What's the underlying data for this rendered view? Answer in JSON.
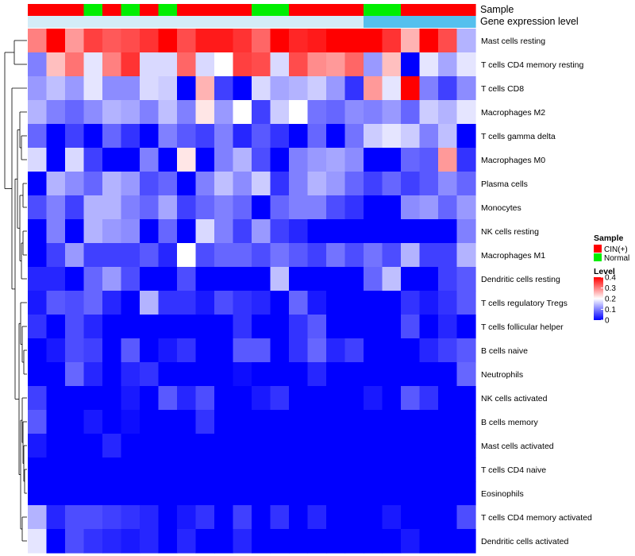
{
  "chart_data": {
    "type": "heatmap",
    "title": "",
    "value_range": [
      0,
      0.4
    ],
    "row_labels": [
      "Mast cells resting",
      "T cells CD4 memory resting",
      "T cells CD8",
      "Macrophages M2",
      "T cells gamma delta",
      "Macrophages M0",
      "Plasma cells",
      "Monocytes",
      "NK cells resting",
      "Macrophages M1",
      "Dendritic cells resting",
      "T cells regulatory  Tregs",
      "T cells follicular helper",
      "B cells naive",
      "Neutrophils",
      "NK cells activated",
      "B cells memory",
      "Mast cells activated",
      "T cells CD4 naive",
      "Eosinophils",
      "T cells CD4 memory activated",
      "Dendritic cells activated"
    ],
    "column_annotations": {
      "sample": [
        "CIN(+)",
        "CIN(+)",
        "CIN(+)",
        "Normal",
        "CIN(+)",
        "Normal",
        "CIN(+)",
        "Normal",
        "CIN(+)",
        "CIN(+)",
        "CIN(+)",
        "CIN(+)",
        "Normal",
        "Normal",
        "CIN(+)",
        "CIN(+)",
        "CIN(+)",
        "CIN(+)",
        "Normal",
        "Normal",
        "CIN(+)",
        "CIN(+)",
        "CIN(+)",
        "CIN(+)"
      ],
      "gene_expression_level": [
        "low",
        "low",
        "low",
        "low",
        "low",
        "low",
        "low",
        "low",
        "low",
        "low",
        "low",
        "low",
        "low",
        "low",
        "low",
        "low",
        "low",
        "low",
        "high",
        "high",
        "high",
        "high",
        "high",
        "high"
      ]
    },
    "annotation_colors": {
      "CIN(+)": "#ff0000",
      "Normal": "#00ee00",
      "low": "#d4ecf7",
      "high": "#55c0ee"
    },
    "values": [
      [
        0.3,
        0.4,
        0.28,
        0.35,
        0.33,
        0.34,
        0.36,
        0.4,
        0.34,
        0.38,
        0.38,
        0.36,
        0.32,
        0.4,
        0.37,
        0.38,
        0.4,
        0.4,
        0.4,
        0.36,
        0.26,
        0.4,
        0.34,
        0.14
      ],
      [
        0.1,
        0.25,
        0.31,
        0.18,
        0.3,
        0.36,
        0.17,
        0.17,
        0.32,
        0.17,
        0.2,
        0.35,
        0.34,
        0.17,
        0.34,
        0.29,
        0.28,
        0.32,
        0.12,
        0.25,
        0.0,
        0.18,
        0.13,
        0.18
      ],
      [
        0.12,
        0.15,
        0.12,
        0.18,
        0.11,
        0.11,
        0.17,
        0.16,
        0.0,
        0.26,
        0.05,
        0.0,
        0.17,
        0.13,
        0.14,
        0.16,
        0.12,
        0.04,
        0.28,
        0.18,
        0.4,
        0.1,
        0.05,
        0.11
      ],
      [
        0.14,
        0.1,
        0.08,
        0.11,
        0.14,
        0.13,
        0.1,
        0.15,
        0.1,
        0.22,
        0.12,
        0.2,
        0.05,
        0.16,
        0.2,
        0.09,
        0.08,
        0.11,
        0.1,
        0.12,
        0.08,
        0.16,
        0.14,
        0.18
      ],
      [
        0.08,
        0.0,
        0.05,
        0.0,
        0.08,
        0.04,
        0.0,
        0.1,
        0.07,
        0.05,
        0.1,
        0.03,
        0.07,
        0.04,
        0.0,
        0.08,
        0.0,
        0.09,
        0.16,
        0.18,
        0.16,
        0.1,
        0.15,
        0.0
      ],
      [
        0.17,
        0.0,
        0.17,
        0.05,
        0.0,
        0.0,
        0.1,
        0.0,
        0.22,
        0.0,
        0.1,
        0.14,
        0.06,
        0.0,
        0.1,
        0.12,
        0.13,
        0.11,
        0.0,
        0.0,
        0.08,
        0.07,
        0.28,
        0.04
      ],
      [
        0.0,
        0.14,
        0.11,
        0.08,
        0.14,
        0.12,
        0.06,
        0.08,
        0.0,
        0.1,
        0.15,
        0.11,
        0.16,
        0.04,
        0.1,
        0.14,
        0.12,
        0.08,
        0.05,
        0.08,
        0.05,
        0.07,
        0.11,
        0.08
      ],
      [
        0.06,
        0.1,
        0.05,
        0.14,
        0.14,
        0.1,
        0.08,
        0.13,
        0.05,
        0.08,
        0.1,
        0.08,
        0.0,
        0.08,
        0.1,
        0.1,
        0.06,
        0.04,
        0.0,
        0.0,
        0.11,
        0.12,
        0.08,
        0.12
      ],
      [
        0.0,
        0.1,
        0.0,
        0.14,
        0.12,
        0.11,
        0.0,
        0.08,
        0.0,
        0.17,
        0.1,
        0.05,
        0.12,
        0.05,
        0.03,
        0.0,
        0.0,
        0.0,
        0.0,
        0.0,
        0.0,
        0.0,
        0.0,
        0.1
      ],
      [
        0.0,
        0.05,
        0.12,
        0.05,
        0.05,
        0.05,
        0.07,
        0.03,
        0.2,
        0.06,
        0.08,
        0.08,
        0.06,
        0.09,
        0.07,
        0.05,
        0.09,
        0.06,
        0.09,
        0.06,
        0.14,
        0.05,
        0.05,
        0.14
      ],
      [
        0.03,
        0.03,
        0.0,
        0.08,
        0.12,
        0.06,
        0.0,
        0.0,
        0.06,
        0.0,
        0.0,
        0.0,
        0.0,
        0.15,
        0.0,
        0.0,
        0.0,
        0.0,
        0.08,
        0.15,
        0.0,
        0.0,
        0.05,
        0.07
      ],
      [
        0.02,
        0.07,
        0.06,
        0.08,
        0.03,
        0.0,
        0.14,
        0.04,
        0.04,
        0.02,
        0.06,
        0.04,
        0.03,
        0.0,
        0.08,
        0.02,
        0.0,
        0.0,
        0.0,
        0.0,
        0.04,
        0.02,
        0.04,
        0.07
      ],
      [
        0.04,
        0.0,
        0.06,
        0.03,
        0.0,
        0.0,
        0.0,
        0.0,
        0.0,
        0.0,
        0.0,
        0.04,
        0.0,
        0.0,
        0.04,
        0.07,
        0.0,
        0.0,
        0.0,
        0.0,
        0.06,
        0.0,
        0.03,
        0.0
      ],
      [
        0.0,
        0.02,
        0.06,
        0.05,
        0.0,
        0.07,
        0.0,
        0.02,
        0.04,
        0.0,
        0.0,
        0.07,
        0.07,
        0.0,
        0.04,
        0.08,
        0.03,
        0.05,
        0.0,
        0.0,
        0.0,
        0.03,
        0.05,
        0.07
      ],
      [
        0.0,
        0.0,
        0.08,
        0.03,
        0.0,
        0.03,
        0.04,
        0.0,
        0.0,
        0.0,
        0.0,
        0.01,
        0.0,
        0.0,
        0.0,
        0.03,
        0.0,
        0.0,
        0.0,
        0.0,
        0.0,
        0.0,
        0.0,
        0.08
      ],
      [
        0.05,
        0.0,
        0.0,
        0.0,
        0.0,
        0.02,
        0.0,
        0.07,
        0.03,
        0.06,
        0.0,
        0.0,
        0.02,
        0.04,
        0.0,
        0.0,
        0.0,
        0.0,
        0.02,
        0.0,
        0.07,
        0.04,
        0.0,
        0.0
      ],
      [
        0.07,
        0.0,
        0.0,
        0.02,
        0.0,
        0.01,
        0.0,
        0.0,
        0.0,
        0.04,
        0.0,
        0.0,
        0.0,
        0.0,
        0.0,
        0.0,
        0.0,
        0.0,
        0.0,
        0.0,
        0.0,
        0.0,
        0.0,
        0.0
      ],
      [
        0.02,
        0.0,
        0.0,
        0.0,
        0.03,
        0.0,
        0.0,
        0.0,
        0.0,
        0.0,
        0.0,
        0.0,
        0.0,
        0.0,
        0.0,
        0.0,
        0.0,
        0.0,
        0.0,
        0.0,
        0.0,
        0.0,
        0.0,
        0.0
      ],
      [
        0.0,
        0.0,
        0.0,
        0.0,
        0.0,
        0.0,
        0.0,
        0.0,
        0.0,
        0.0,
        0.0,
        0.0,
        0.0,
        0.0,
        0.0,
        0.0,
        0.0,
        0.0,
        0.0,
        0.0,
        0.0,
        0.0,
        0.0,
        0.0
      ],
      [
        0.0,
        0.0,
        0.0,
        0.0,
        0.0,
        0.0,
        0.0,
        0.0,
        0.0,
        0.0,
        0.0,
        0.0,
        0.0,
        0.0,
        0.0,
        0.0,
        0.0,
        0.0,
        0.0,
        0.0,
        0.0,
        0.0,
        0.0,
        0.0
      ],
      [
        0.14,
        0.03,
        0.06,
        0.06,
        0.05,
        0.04,
        0.03,
        0.0,
        0.02,
        0.04,
        0.0,
        0.05,
        0.0,
        0.04,
        0.0,
        0.03,
        0.0,
        0.0,
        0.0,
        0.02,
        0.0,
        0.0,
        0.0,
        0.06
      ],
      [
        0.18,
        0.0,
        0.06,
        0.04,
        0.03,
        0.02,
        0.03,
        0.0,
        0.03,
        0.0,
        0.0,
        0.03,
        0.0,
        0.0,
        0.0,
        0.0,
        0.0,
        0.0,
        0.0,
        0.0,
        0.02,
        0.0,
        0.0,
        0.0
      ]
    ],
    "dendrogram": "rows"
  },
  "annotation_labels": {
    "sample": "Sample",
    "gene_expression_level": "Gene expression level"
  },
  "legend": {
    "sample_title": "Sample",
    "sample_items": [
      {
        "label": "CIN(+)",
        "color": "#ff0000"
      },
      {
        "label": "Normal",
        "color": "#00ee00"
      }
    ],
    "level_title": "Level",
    "level_ticks": [
      "0.4",
      "0.3",
      "0.2",
      "0.1",
      "0"
    ],
    "level_tick_values": [
      0.4,
      0.3,
      0.2,
      0.1,
      0
    ],
    "color_scale": {
      "low": "#0000ff",
      "mid": "#ffffff",
      "high": "#ff0000"
    }
  }
}
